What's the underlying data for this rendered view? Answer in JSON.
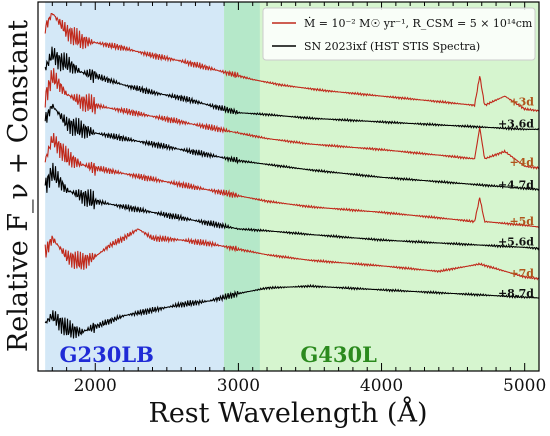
{
  "chart_data": {
    "type": "line",
    "title": "",
    "xlabel": "Rest Wavelength (Å)",
    "ylabel": "Relative F_ν + Constant",
    "xlim": [
      1600,
      5100
    ],
    "ylim": [
      0,
      10
    ],
    "x_ticks": [
      2000,
      3000,
      4000,
      5000
    ],
    "x_tick_labels": [
      "2000",
      "3000",
      "4000",
      "5000"
    ],
    "y_ticks": [],
    "grid": false,
    "regions": [
      {
        "name": "G230LB",
        "x_range": [
          1650,
          3150
        ],
        "color": "#d4e8f7",
        "label_color": "#1f2bd6"
      },
      {
        "name": "G430L",
        "x_range": [
          2900,
          5100
        ],
        "color": "#d6f5cf",
        "label_color": "#2b8a1e"
      },
      {
        "name": "overlap",
        "x_range": [
          2900,
          3150
        ],
        "color": "#b5e8c9"
      }
    ],
    "legend": {
      "placement": "top-right",
      "entries": [
        {
          "label": "Ṁ = 10⁻² M☉ yr⁻¹, R_CSM = 5 × 10¹⁴cm",
          "color": "#c0281a"
        },
        {
          "label": "SN 2023ixf (HST STIS Spectra)",
          "color": "#000000"
        }
      ]
    },
    "epoch_labels": [
      {
        "text": "+3d",
        "color": "#b0551c",
        "y": 7.2
      },
      {
        "text": "+3.6d",
        "color": "#111111",
        "y": 6.6
      },
      {
        "text": "+4d",
        "color": "#b0551c",
        "y": 5.55
      },
      {
        "text": "+4.7d",
        "color": "#111111",
        "y": 4.95
      },
      {
        "text": "+5d",
        "color": "#b0551c",
        "y": 3.95
      },
      {
        "text": "+5.6d",
        "color": "#111111",
        "y": 3.4
      },
      {
        "text": "+7d",
        "color": "#b0551c",
        "y": 2.55
      },
      {
        "text": "+8.7d",
        "color": "#111111",
        "y": 2.0
      }
    ],
    "series": [
      {
        "name": "model +3d",
        "color": "#c0281a",
        "x": [
          1650,
          1700,
          1800,
          1900,
          2000,
          2200,
          2400,
          2600,
          2800,
          3000,
          3100,
          3300,
          3600,
          4000,
          4400,
          4650,
          4686,
          4720,
          4861,
          5000,
          5100
        ],
        "y": [
          9.3,
          9.7,
          9.2,
          8.95,
          8.9,
          8.75,
          8.55,
          8.4,
          8.2,
          8.0,
          7.9,
          7.75,
          7.6,
          7.45,
          7.3,
          7.2,
          8.0,
          7.2,
          7.45,
          7.1,
          7.05
        ]
      },
      {
        "name": "SN 2023ixf +3.6d",
        "color": "#000000",
        "x": [
          1650,
          1700,
          1750,
          1800,
          1900,
          2000,
          2200,
          2400,
          2600,
          2800,
          3000,
          3200,
          3500,
          4000,
          4500,
          5000,
          5100
        ],
        "y": [
          8.2,
          8.6,
          8.4,
          8.35,
          8.1,
          8.0,
          7.75,
          7.55,
          7.4,
          7.2,
          7.0,
          6.95,
          6.85,
          6.75,
          6.65,
          6.55,
          6.55
        ]
      },
      {
        "name": "model +4d",
        "color": "#c0281a",
        "x": [
          1650,
          1700,
          1800,
          1900,
          2000,
          2200,
          2400,
          2600,
          2800,
          3000,
          3200,
          3500,
          4000,
          4400,
          4650,
          4686,
          4720,
          4861,
          5000,
          5100
        ],
        "y": [
          7.4,
          8.0,
          7.5,
          7.3,
          7.2,
          7.05,
          6.9,
          6.75,
          6.6,
          6.45,
          6.3,
          6.15,
          6.0,
          5.85,
          5.75,
          6.6,
          5.75,
          5.95,
          5.55,
          5.5
        ]
      },
      {
        "name": "SN 2023ixf +4.7d",
        "color": "#000000",
        "x": [
          1650,
          1700,
          1800,
          1900,
          2000,
          2200,
          2400,
          2600,
          2800,
          3000,
          3200,
          3500,
          4000,
          4500,
          5000,
          5100
        ],
        "y": [
          6.8,
          7.2,
          6.7,
          6.55,
          6.45,
          6.3,
          6.15,
          6.0,
          5.85,
          5.7,
          5.6,
          5.45,
          5.25,
          5.1,
          4.95,
          4.92
        ]
      },
      {
        "name": "model +5d",
        "color": "#c0281a",
        "x": [
          1650,
          1700,
          1800,
          1900,
          2000,
          2200,
          2400,
          2600,
          2800,
          3000,
          3200,
          3500,
          4000,
          4400,
          4650,
          4686,
          4720,
          5000,
          5100
        ],
        "y": [
          5.7,
          6.3,
          5.8,
          5.6,
          5.5,
          5.35,
          5.2,
          5.05,
          4.9,
          4.75,
          4.6,
          4.45,
          4.3,
          4.15,
          4.05,
          4.7,
          4.05,
          3.95,
          3.9
        ]
      },
      {
        "name": "SN 2023ixf +5.6d",
        "color": "#000000",
        "x": [
          1650,
          1700,
          1800,
          1900,
          2000,
          2200,
          2400,
          2600,
          2800,
          3000,
          3200,
          3500,
          4000,
          4500,
          5000,
          5100
        ],
        "y": [
          5.0,
          5.4,
          4.9,
          4.75,
          4.6,
          4.45,
          4.3,
          4.15,
          4.0,
          3.85,
          3.8,
          3.7,
          3.55,
          3.45,
          3.35,
          3.32
        ]
      },
      {
        "name": "model +7d",
        "color": "#c0281a",
        "x": [
          1650,
          1700,
          1800,
          1900,
          2000,
          2100,
          2200,
          2300,
          2400,
          2600,
          2800,
          3000,
          3200,
          3500,
          4000,
          4400,
          4686,
          5000,
          5100
        ],
        "y": [
          3.2,
          3.6,
          3.1,
          2.95,
          3.1,
          3.4,
          3.6,
          3.85,
          3.6,
          3.55,
          3.45,
          3.3,
          3.15,
          3.0,
          2.85,
          2.7,
          2.9,
          2.55,
          2.5
        ]
      },
      {
        "name": "SN 2023ixf +8.7d",
        "color": "#000000",
        "x": [
          1650,
          1700,
          1800,
          1900,
          2000,
          2200,
          2400,
          2600,
          2800,
          3000,
          3200,
          3500,
          4000,
          4500,
          5000,
          5100
        ],
        "y": [
          1.3,
          1.5,
          1.15,
          1.05,
          1.2,
          1.5,
          1.65,
          1.8,
          1.9,
          2.1,
          2.25,
          2.3,
          2.2,
          2.1,
          2.0,
          1.98
        ]
      }
    ]
  }
}
